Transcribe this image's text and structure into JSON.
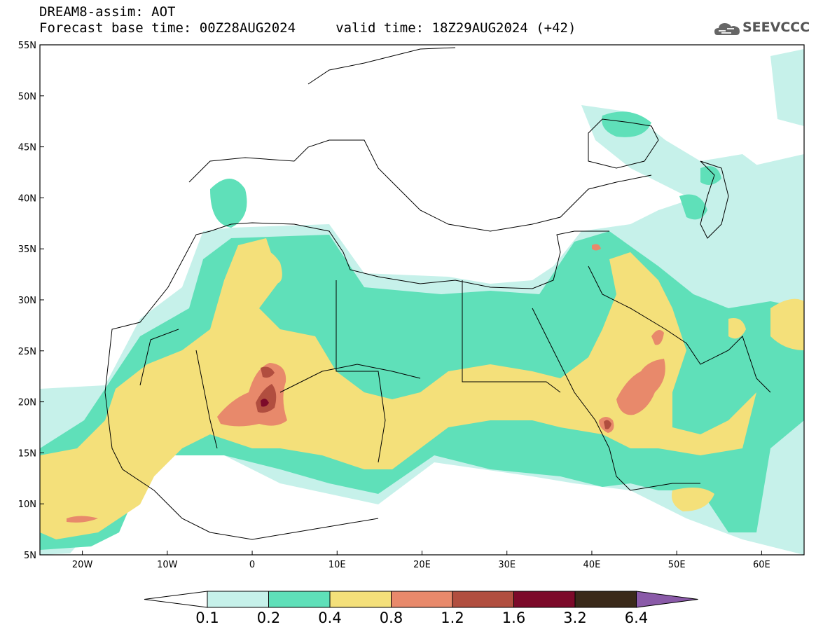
{
  "header": {
    "line1": "DREAM8-assim: AOT",
    "line2": "Forecast base time: 00Z28AUG2024     valid time: 18Z29AUG2024 (+42)"
  },
  "logo": {
    "text": "SEEVCCC",
    "icon": "cloud-icon"
  },
  "map": {
    "lon_range": [
      -25,
      65
    ],
    "lat_range": [
      5,
      55
    ],
    "lat_ticks": [
      "55N",
      "50N",
      "45N",
      "40N",
      "35N",
      "30N",
      "25N",
      "20N",
      "15N",
      "10N",
      "5N"
    ],
    "lon_ticks": [
      "20W",
      "10W",
      "0",
      "10E",
      "20E",
      "30E",
      "40E",
      "50E",
      "60E"
    ],
    "coastline_color": "#000000"
  },
  "colorbar": {
    "labels": [
      "0.1",
      "0.2",
      "0.4",
      "0.8",
      "1.2",
      "1.6",
      "3.2",
      "6.4"
    ],
    "colors": [
      "#c6f1ea",
      "#5fe0b9",
      "#f4e07a",
      "#e8896b",
      "#b14e3f",
      "#7c0a2a",
      "#3a2a1a",
      "#8a5aa8"
    ]
  }
}
